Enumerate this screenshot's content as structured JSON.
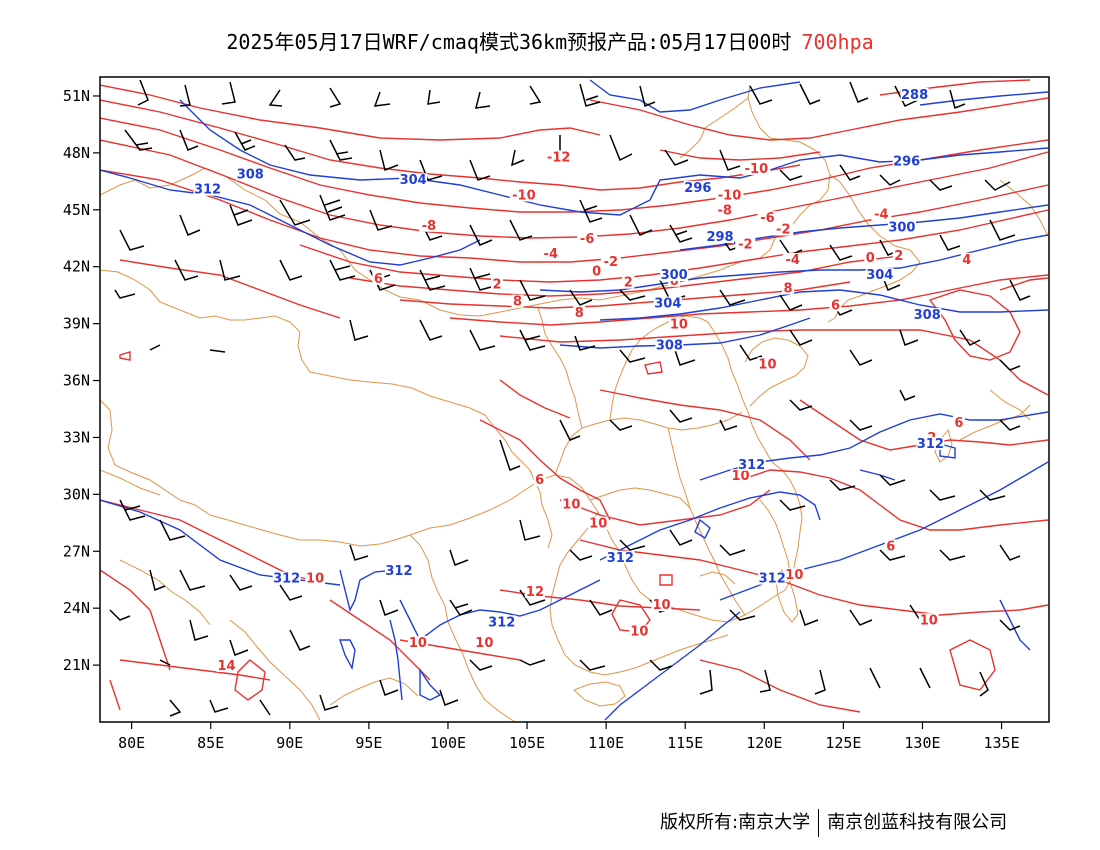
{
  "title": {
    "text": "2025年05月17日WRF/cmaq模式36km预报产品:05月17日00时",
    "level": "700hpa"
  },
  "axes": {
    "lon_labels": [
      "80E",
      "85E",
      "90E",
      "95E",
      "100E",
      "105E",
      "110E",
      "115E",
      "120E",
      "125E",
      "130E",
      "135E"
    ],
    "lon_values": [
      80,
      85,
      90,
      95,
      100,
      105,
      110,
      115,
      120,
      125,
      130,
      135
    ],
    "lat_labels": [
      "51N",
      "48N",
      "45N",
      "42N",
      "39N",
      "36N",
      "33N",
      "30N",
      "27N",
      "24N",
      "21N"
    ],
    "lat_values": [
      51,
      48,
      45,
      42,
      39,
      36,
      33,
      30,
      27,
      24,
      21
    ],
    "lon_range": [
      78,
      138
    ],
    "lat_range": [
      18,
      52
    ]
  },
  "colors": {
    "temperature": "#e8322f",
    "height": "#1f3fd8",
    "boundary": "#e0954a",
    "wind": "#000000"
  },
  "contour_labels": {
    "temperature": [
      {
        "text": "-12",
        "lon": 107.0,
        "lat": 47.6
      },
      {
        "text": "-10",
        "lon": 119.5,
        "lat": 47.0
      },
      {
        "text": "-10",
        "lon": 104.8,
        "lat": 45.6
      },
      {
        "text": "-10",
        "lon": 117.8,
        "lat": 45.6
      },
      {
        "text": "-8",
        "lon": 117.5,
        "lat": 44.8
      },
      {
        "text": "-6",
        "lon": 120.2,
        "lat": 44.4
      },
      {
        "text": "-8",
        "lon": 98.8,
        "lat": 44.0
      },
      {
        "text": "-6",
        "lon": 108.8,
        "lat": 43.3
      },
      {
        "text": "-4",
        "lon": 106.5,
        "lat": 42.5
      },
      {
        "text": "-4",
        "lon": 127.4,
        "lat": 44.6
      },
      {
        "text": "-2",
        "lon": 121.2,
        "lat": 43.8
      },
      {
        "text": "-2",
        "lon": 110.3,
        "lat": 42.1
      },
      {
        "text": "0",
        "lon": 109.4,
        "lat": 41.6
      },
      {
        "text": "-2",
        "lon": 118.8,
        "lat": 43.0
      },
      {
        "text": "2",
        "lon": 111.4,
        "lat": 41.0
      },
      {
        "text": "-4",
        "lon": 121.8,
        "lat": 42.2
      },
      {
        "text": "0",
        "lon": 126.7,
        "lat": 42.3
      },
      {
        "text": "2",
        "lon": 128.5,
        "lat": 42.4
      },
      {
        "text": "4",
        "lon": 132.8,
        "lat": 42.2
      },
      {
        "text": "6",
        "lon": 95.6,
        "lat": 41.2
      },
      {
        "text": "2",
        "lon": 103.1,
        "lat": 40.9
      },
      {
        "text": "6",
        "lon": 114.3,
        "lat": 41.1
      },
      {
        "text": "8",
        "lon": 104.4,
        "lat": 40.0
      },
      {
        "text": "8",
        "lon": 108.3,
        "lat": 39.4
      },
      {
        "text": "8",
        "lon": 121.5,
        "lat": 40.7
      },
      {
        "text": "6",
        "lon": 124.5,
        "lat": 39.8
      },
      {
        "text": "10",
        "lon": 114.6,
        "lat": 38.8
      },
      {
        "text": "10",
        "lon": 120.2,
        "lat": 36.7
      },
      {
        "text": "6",
        "lon": 132.3,
        "lat": 33.6
      },
      {
        "text": "2",
        "lon": 130.6,
        "lat": 32.8
      },
      {
        "text": "6",
        "lon": 105.8,
        "lat": 30.6
      },
      {
        "text": "10",
        "lon": 118.5,
        "lat": 30.8
      },
      {
        "text": "10",
        "lon": 107.8,
        "lat": 29.3
      },
      {
        "text": "10",
        "lon": 109.5,
        "lat": 28.3
      },
      {
        "text": "6",
        "lon": 128.0,
        "lat": 27.1
      },
      {
        "text": "10",
        "lon": 91.6,
        "lat": 25.4
      },
      {
        "text": "10",
        "lon": 121.9,
        "lat": 25.6
      },
      {
        "text": "12",
        "lon": 105.5,
        "lat": 24.7
      },
      {
        "text": "10",
        "lon": 113.5,
        "lat": 24.0
      },
      {
        "text": "10",
        "lon": 112.1,
        "lat": 22.6
      },
      {
        "text": "10",
        "lon": 130.4,
        "lat": 23.2
      },
      {
        "text": "10",
        "lon": 98.1,
        "lat": 22.0
      },
      {
        "text": "10",
        "lon": 102.3,
        "lat": 22.0
      },
      {
        "text": "14",
        "lon": 86.0,
        "lat": 20.8
      }
    ],
    "height": [
      {
        "text": "288",
        "lon": 129.5,
        "lat": 50.9
      },
      {
        "text": "308",
        "lon": 87.5,
        "lat": 46.7
      },
      {
        "text": "312",
        "lon": 84.8,
        "lat": 45.9
      },
      {
        "text": "304",
        "lon": 97.8,
        "lat": 46.4
      },
      {
        "text": "296",
        "lon": 115.8,
        "lat": 46.0
      },
      {
        "text": "296",
        "lon": 129.0,
        "lat": 47.4
      },
      {
        "text": "300",
        "lon": 128.7,
        "lat": 43.9
      },
      {
        "text": "298",
        "lon": 117.2,
        "lat": 43.4
      },
      {
        "text": "300",
        "lon": 114.3,
        "lat": 41.4
      },
      {
        "text": "304",
        "lon": 127.3,
        "lat": 41.4
      },
      {
        "text": "304",
        "lon": 113.9,
        "lat": 39.9
      },
      {
        "text": "308",
        "lon": 130.3,
        "lat": 39.3
      },
      {
        "text": "308",
        "lon": 114.0,
        "lat": 37.7
      },
      {
        "text": "312",
        "lon": 119.2,
        "lat": 31.4
      },
      {
        "text": "312",
        "lon": 130.5,
        "lat": 32.5
      },
      {
        "text": "312",
        "lon": 89.8,
        "lat": 25.4
      },
      {
        "text": "312",
        "lon": 96.9,
        "lat": 25.8
      },
      {
        "text": "312",
        "lon": 110.9,
        "lat": 26.5
      },
      {
        "text": "312",
        "lon": 103.4,
        "lat": 23.1
      },
      {
        "text": "312",
        "lon": 120.5,
        "lat": 25.4
      }
    ]
  },
  "footer": {
    "copyright": "版权所有:南京大学",
    "company": "南京创蓝科技有限公司"
  }
}
